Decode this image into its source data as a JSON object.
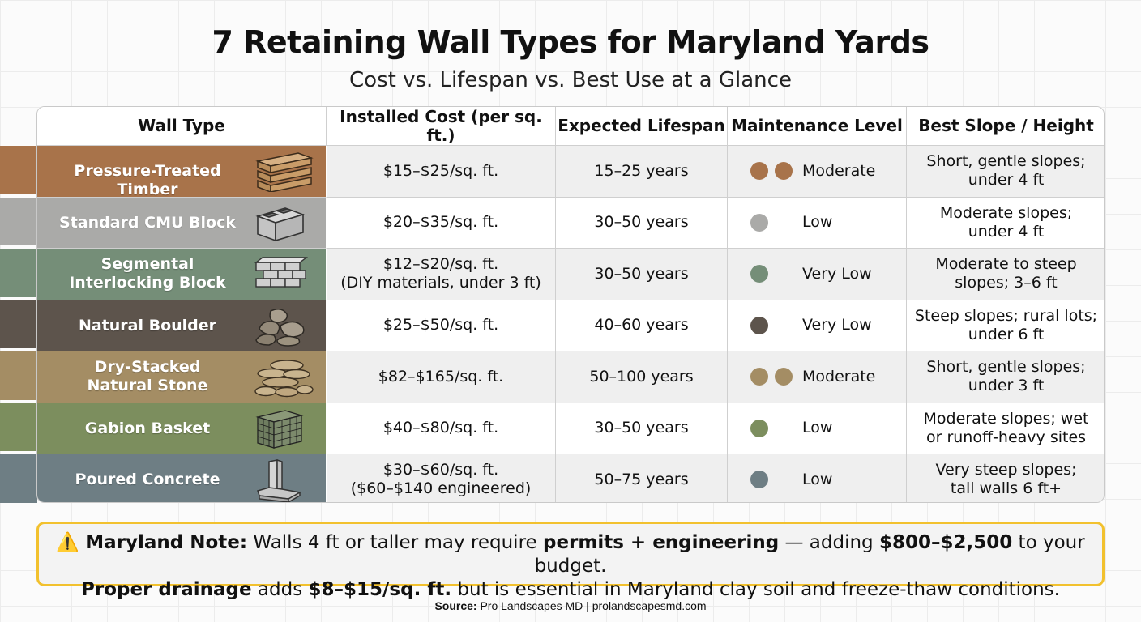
{
  "title": "7 Retaining Wall Types for Maryland Yards",
  "subtitle": "Cost vs. Lifespan vs. Best Use at a Glance",
  "headers": [
    "Wall Type",
    "Installed Cost (per sq. ft.)",
    "Expected Lifespan",
    "Maintenance Level",
    "Best Slope / Height"
  ],
  "rows": [
    {
      "type_lines": [
        "Pressure-Treated Timber"
      ],
      "cost_lines": [
        "$15–$25/sq. ft."
      ],
      "lifespan": "15–25 years",
      "maintenance": "Moderate",
      "dots": 2,
      "slope_lines": [
        "Short, gentle slopes;",
        "under 4 ft"
      ],
      "color": "#a8734a",
      "icon": "timber-planks-icon"
    },
    {
      "type_lines": [
        "Standard CMU Block"
      ],
      "cost_lines": [
        "$20–$35/sq. ft."
      ],
      "lifespan": "30–50 years",
      "maintenance": "Low",
      "dots": 1,
      "slope_lines": [
        "Moderate slopes;",
        "under 4 ft"
      ],
      "color": "#aaaaa8",
      "icon": "cmu-block-icon"
    },
    {
      "type_lines": [
        "Segmental",
        "Interlocking Block"
      ],
      "cost_lines": [
        "$12–$20/sq. ft.",
        "(DIY materials, under 3 ft)"
      ],
      "lifespan": "30–50 years",
      "maintenance": "Very Low",
      "dots": 1,
      "slope_lines": [
        "Moderate to steep",
        "slopes; 3–6 ft"
      ],
      "color": "#758e78",
      "icon": "interlocking-block-icon"
    },
    {
      "type_lines": [
        "Natural Boulder"
      ],
      "cost_lines": [
        "$25–$50/sq. ft."
      ],
      "lifespan": "40–60 years",
      "maintenance": "Very Low",
      "dots": 1,
      "slope_lines": [
        "Steep slopes; rural lots;",
        "under 6 ft"
      ],
      "color": "#5d544c",
      "icon": "boulder-icon"
    },
    {
      "type_lines": [
        "Dry-Stacked",
        "Natural Stone"
      ],
      "cost_lines": [
        "$82–$165/sq. ft."
      ],
      "lifespan": "50–100 years",
      "maintenance": "Moderate",
      "dots": 2,
      "slope_lines": [
        "Short, gentle slopes;",
        "under 3 ft"
      ],
      "color": "#a48d64",
      "icon": "stacked-stone-icon"
    },
    {
      "type_lines": [
        "Gabion Basket"
      ],
      "cost_lines": [
        "$40–$80/sq. ft."
      ],
      "lifespan": "30–50 years",
      "maintenance": "Low",
      "dots": 1,
      "slope_lines": [
        "Moderate slopes; wet",
        "or runoff-heavy sites"
      ],
      "color": "#7c8e5e",
      "icon": "gabion-basket-icon"
    },
    {
      "type_lines": [
        "Poured Concrete"
      ],
      "cost_lines": [
        "$30–$60/sq. ft.",
        "($60–$140 engineered)"
      ],
      "lifespan": "50–75 years",
      "maintenance": "Low",
      "dots": 1,
      "slope_lines": [
        "Very steep slopes;",
        "tall walls 6 ft+"
      ],
      "color": "#6e7e84",
      "icon": "concrete-wall-icon"
    }
  ],
  "note": {
    "icon": "⚠️",
    "label": "Maryland Note:",
    "text1": " Walls 4 ft or taller may require ",
    "bold1": "permits + engineering",
    "text2": " — adding ",
    "bold2": "$800–$2,500",
    "text3": " to your budget.",
    "bold3": "Proper drainage",
    "text4": " adds ",
    "bold4": "$8–$15/sq. ft.",
    "text5": " but is essential in Maryland clay soil and freeze-thaw conditions."
  },
  "source": {
    "label": "Source:",
    "text": " Pro Landscapes MD | prolandscapesmd.com"
  }
}
